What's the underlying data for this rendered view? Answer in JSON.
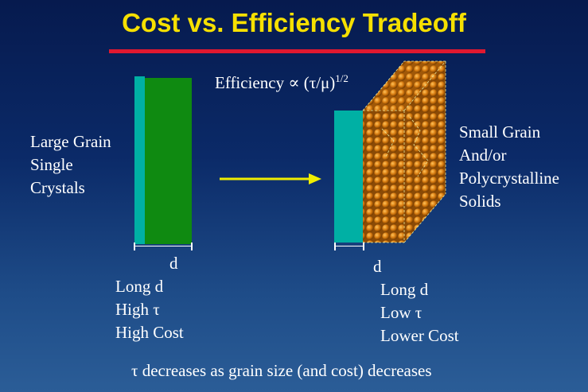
{
  "title": "Cost vs. Efficiency Tradeoff",
  "formula": {
    "base": "Efficiency ∝ (τ/μ)",
    "exponent": "1/2"
  },
  "large_grain": {
    "label_lines": [
      "Large Grain",
      "Single",
      "Crystals"
    ],
    "dimension": "d",
    "properties": [
      "Long d",
      "High τ",
      "High Cost"
    ]
  },
  "small_grain": {
    "label_lines": [
      "Small Grain",
      "And/or",
      "Polycrystalline",
      "Solids"
    ],
    "dimension": "d",
    "properties": [
      "Long d",
      "Low τ",
      "Lower Cost"
    ]
  },
  "footer": "τ decreases as grain size (and cost) decreases",
  "colors": {
    "title": "#f6e000",
    "rule": "#e01830",
    "slab_edge": "#00b0a4",
    "large_slab": "#0f8a11",
    "grain": "#d87c10",
    "arrow": "#f0ee00"
  }
}
